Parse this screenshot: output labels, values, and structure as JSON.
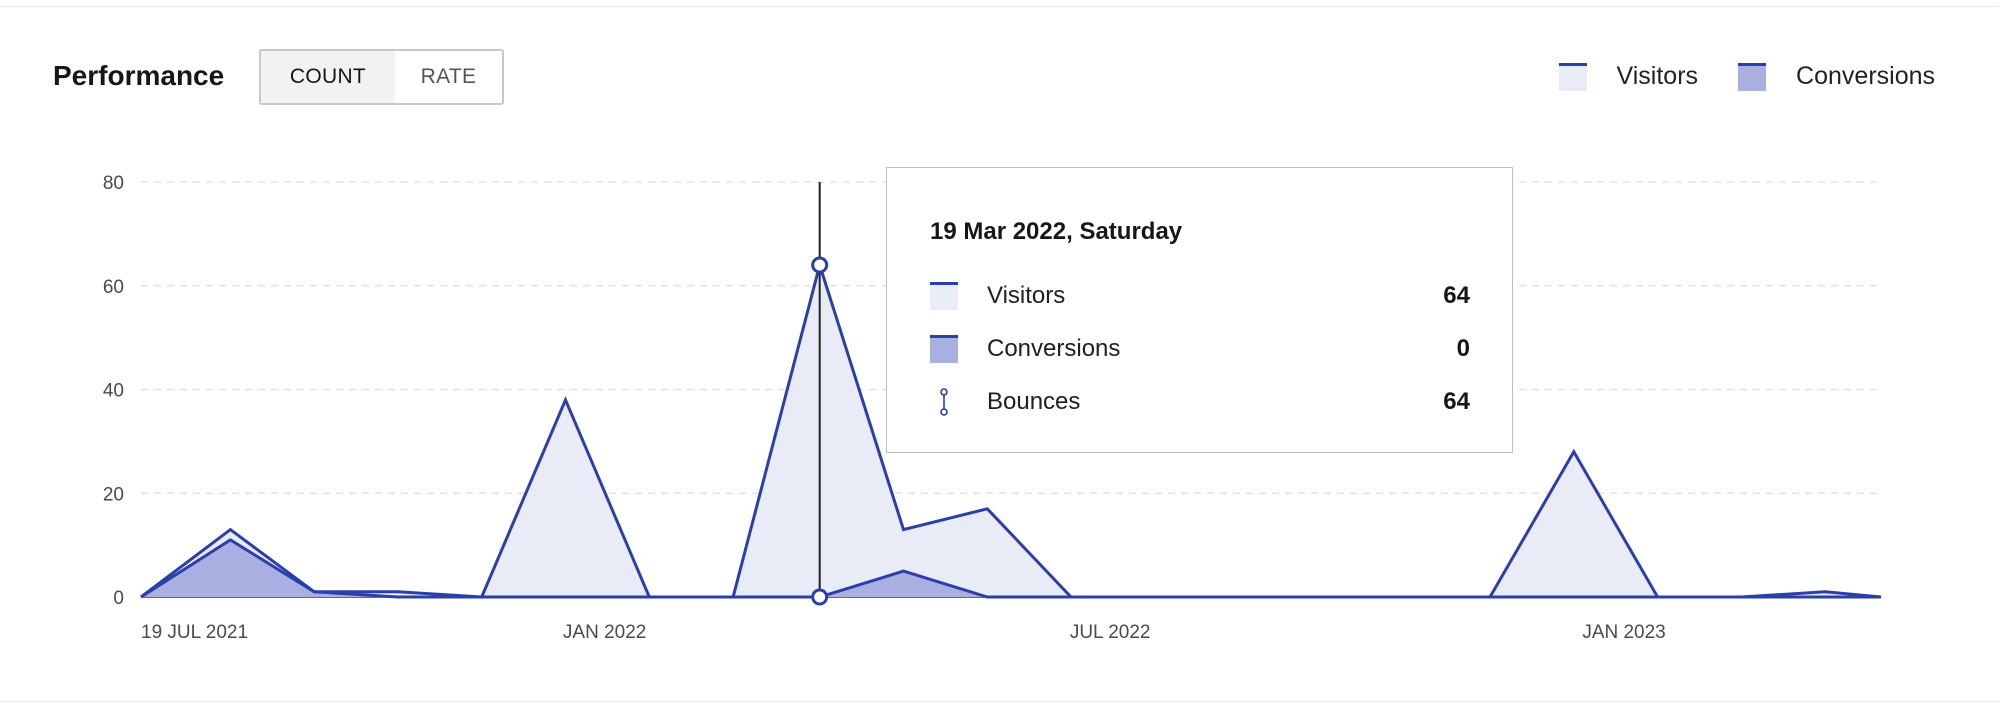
{
  "header": {
    "title": "Performance",
    "toggle": {
      "options": [
        "COUNT",
        "RATE"
      ],
      "selected": "COUNT"
    }
  },
  "legend": [
    {
      "label": "Visitors"
    },
    {
      "label": "Conversions"
    }
  ],
  "colors": {
    "line": "#2b3fa8",
    "visitors_fill": "#e9ebf6",
    "conversions_fill": "#a9afe0",
    "grid": "#dddddd",
    "axis_text": "#4a4a4a"
  },
  "tooltip": {
    "date": "19 Mar 2022, Saturday",
    "rows": [
      {
        "label": "Visitors",
        "value": "64",
        "icon": "visitors-swatch-icon"
      },
      {
        "label": "Conversions",
        "value": "0",
        "icon": "conversions-swatch-icon"
      },
      {
        "label": "Bounces",
        "value": "64",
        "icon": "bounces-range-icon"
      }
    ]
  },
  "chart_data": {
    "type": "area",
    "ylim": [
      0,
      80
    ],
    "yticks": [
      0,
      20,
      40,
      60,
      80
    ],
    "xlim": [
      "2021-07-19",
      "2023-04-03"
    ],
    "xticks": [
      {
        "date": "2021-07-19",
        "label": "19 JUL 2021"
      },
      {
        "date": "2022-01-01",
        "label": "JAN 2022"
      },
      {
        "date": "2022-07-01",
        "label": "JUL 2022"
      },
      {
        "date": "2023-01-01",
        "label": "JAN 2023"
      }
    ],
    "grid": true,
    "legend_position": "top-right",
    "hover_date": "2022-03-19",
    "series": [
      {
        "name": "Visitors",
        "points": [
          {
            "x": "2021-07-19",
            "y": 0
          },
          {
            "x": "2021-08-20",
            "y": 13
          },
          {
            "x": "2021-09-19",
            "y": 1
          },
          {
            "x": "2021-10-19",
            "y": 1
          },
          {
            "x": "2021-11-18",
            "y": 0
          },
          {
            "x": "2021-12-18",
            "y": 38
          },
          {
            "x": "2022-01-17",
            "y": 0
          },
          {
            "x": "2022-02-16",
            "y": 0
          },
          {
            "x": "2022-03-19",
            "y": 64
          },
          {
            "x": "2022-04-18",
            "y": 13
          },
          {
            "x": "2022-05-18",
            "y": 17
          },
          {
            "x": "2022-06-17",
            "y": 0
          },
          {
            "x": "2022-07-17",
            "y": 0
          },
          {
            "x": "2022-08-16",
            "y": 0
          },
          {
            "x": "2022-09-15",
            "y": 0
          },
          {
            "x": "2022-10-15",
            "y": 0
          },
          {
            "x": "2022-11-14",
            "y": 0
          },
          {
            "x": "2022-12-14",
            "y": 28
          },
          {
            "x": "2023-01-13",
            "y": 0
          },
          {
            "x": "2023-02-12",
            "y": 0
          },
          {
            "x": "2023-03-14",
            "y": 1
          },
          {
            "x": "2023-04-03",
            "y": 0
          }
        ]
      },
      {
        "name": "Conversions",
        "points": [
          {
            "x": "2021-07-19",
            "y": 0
          },
          {
            "x": "2021-08-20",
            "y": 11
          },
          {
            "x": "2021-09-19",
            "y": 1
          },
          {
            "x": "2021-10-19",
            "y": 0
          },
          {
            "x": "2021-11-18",
            "y": 0
          },
          {
            "x": "2021-12-18",
            "y": 0
          },
          {
            "x": "2022-01-17",
            "y": 0
          },
          {
            "x": "2022-02-16",
            "y": 0
          },
          {
            "x": "2022-03-19",
            "y": 0
          },
          {
            "x": "2022-04-18",
            "y": 5
          },
          {
            "x": "2022-05-18",
            "y": 0
          },
          {
            "x": "2022-06-17",
            "y": 0
          },
          {
            "x": "2022-07-17",
            "y": 0
          },
          {
            "x": "2022-08-16",
            "y": 0
          },
          {
            "x": "2022-09-15",
            "y": 0
          },
          {
            "x": "2022-10-15",
            "y": 0
          },
          {
            "x": "2022-11-14",
            "y": 0
          },
          {
            "x": "2022-12-14",
            "y": 0
          },
          {
            "x": "2023-01-13",
            "y": 0
          },
          {
            "x": "2023-02-12",
            "y": 0
          },
          {
            "x": "2023-03-14",
            "y": 0
          },
          {
            "x": "2023-04-03",
            "y": 0
          }
        ]
      }
    ]
  }
}
